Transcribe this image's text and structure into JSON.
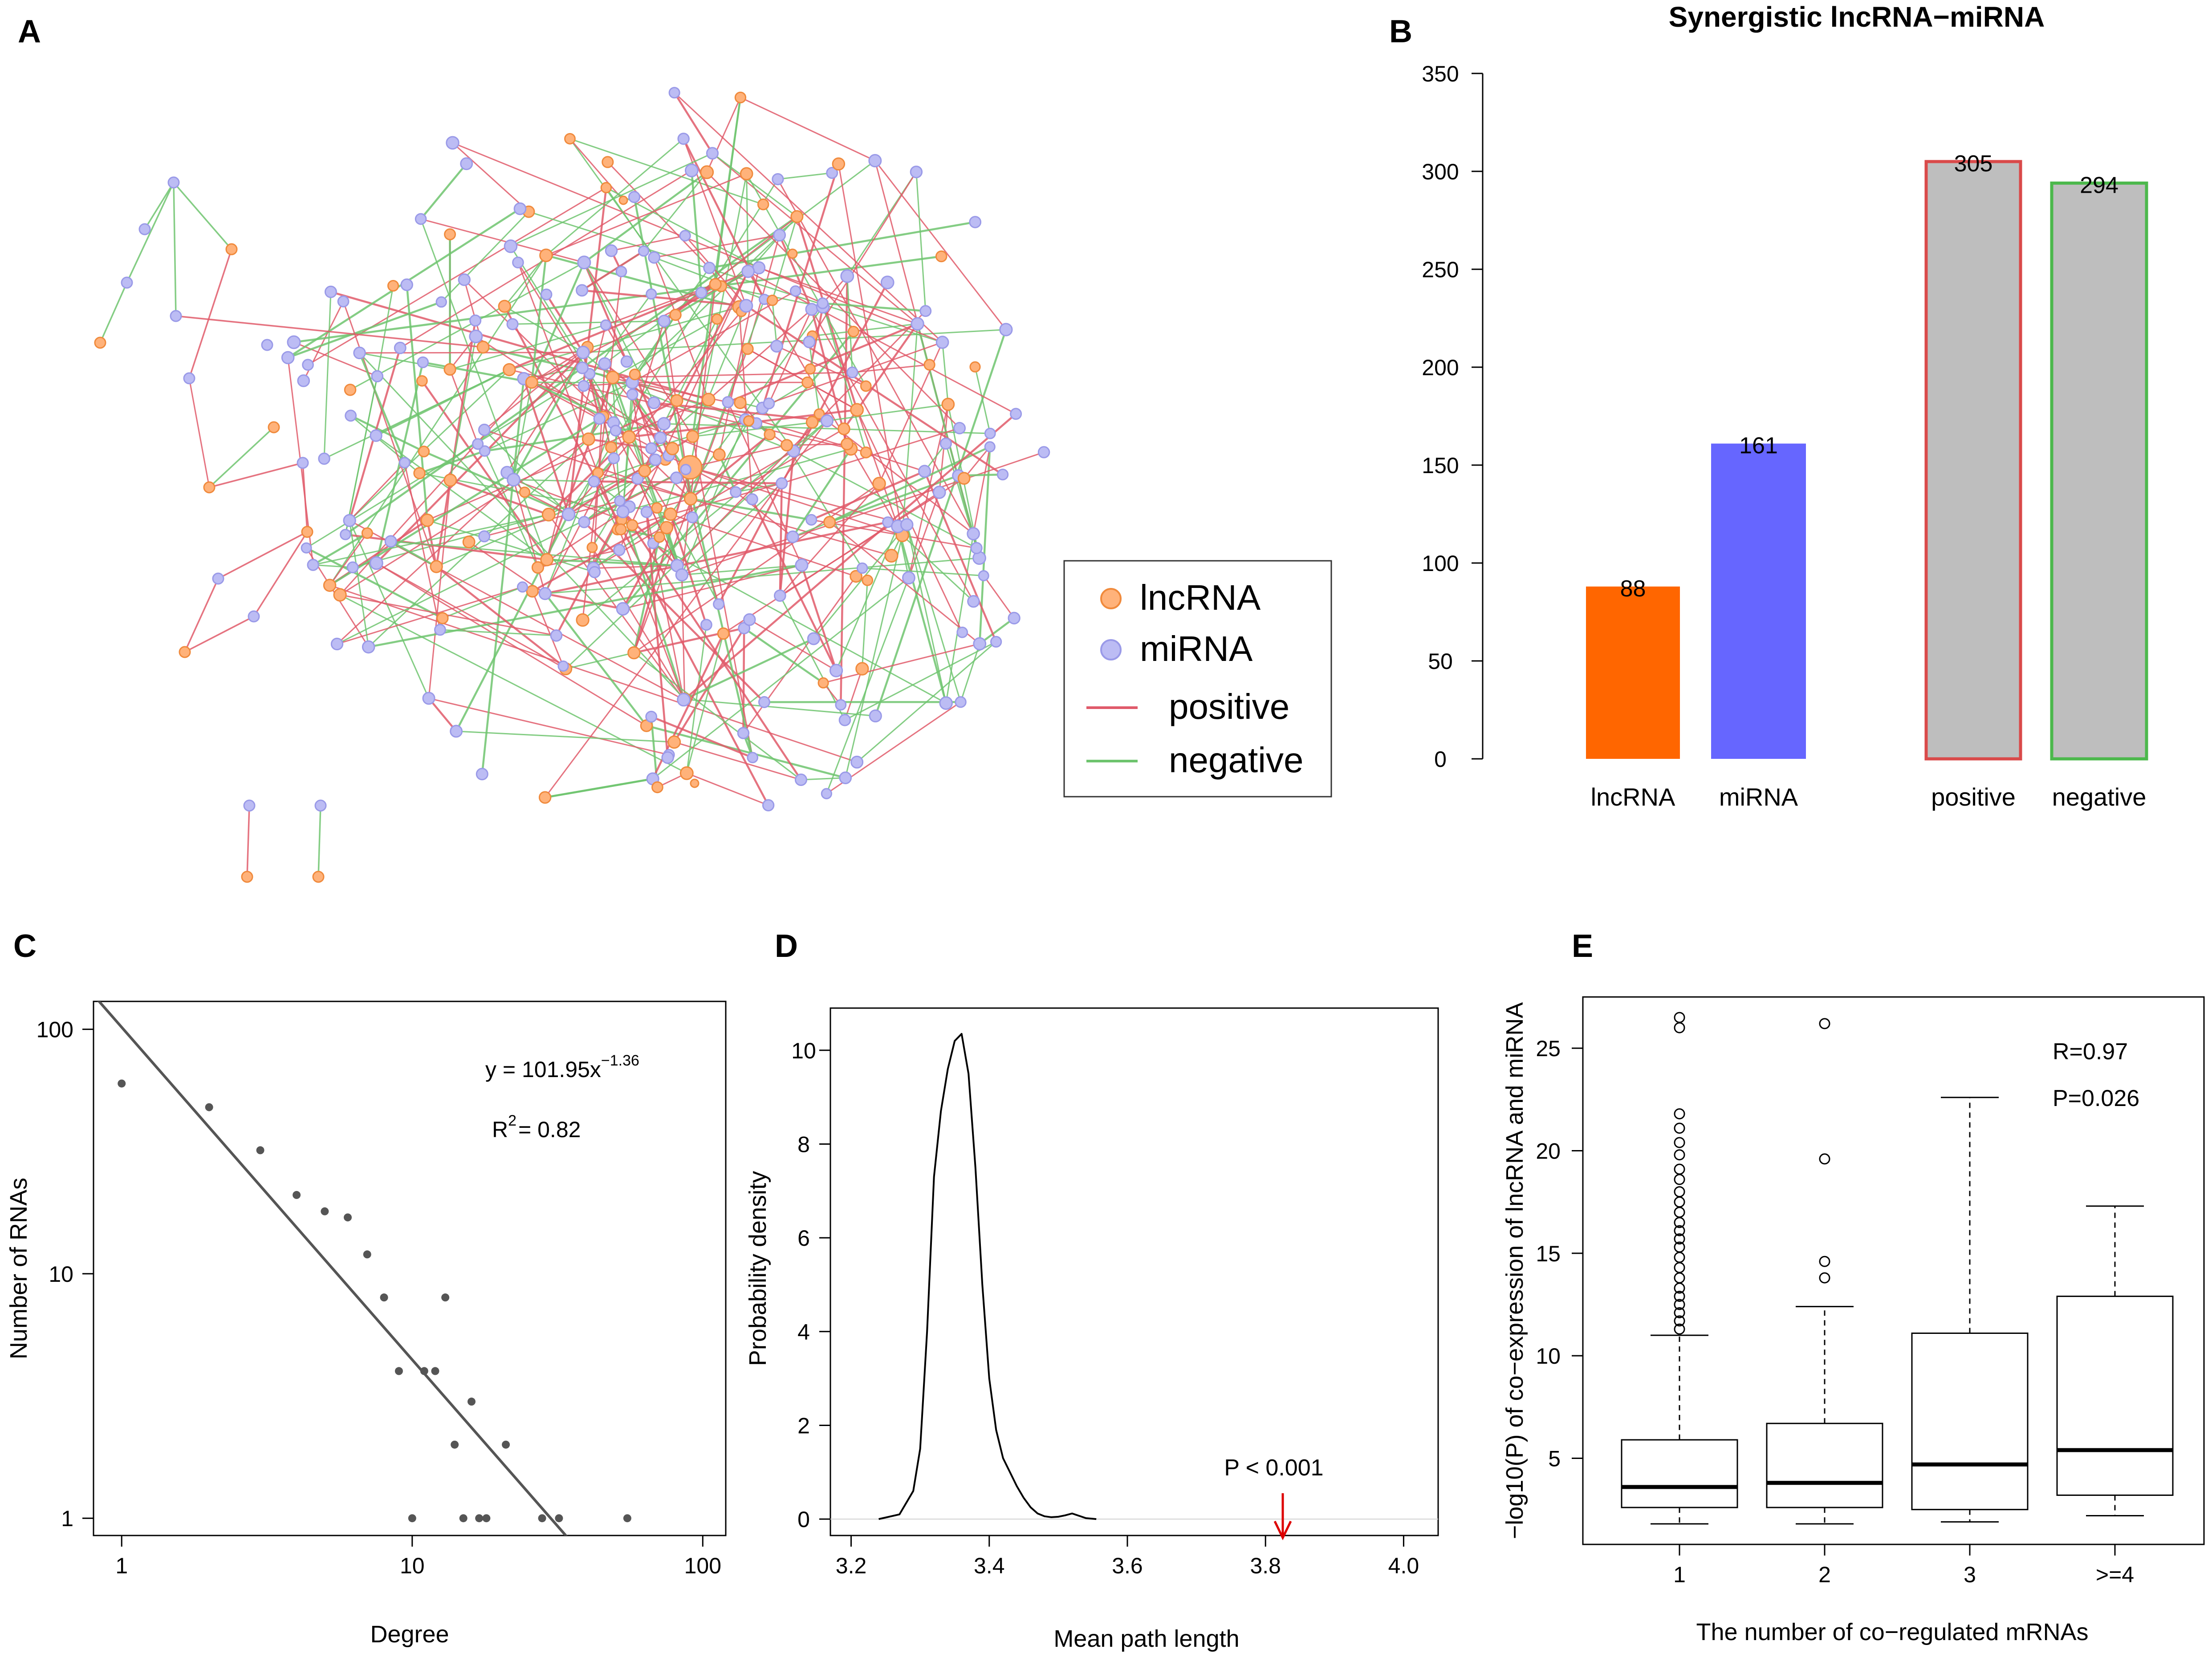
{
  "panel_labels": {
    "a": "A",
    "b": "B",
    "c": "C",
    "d": "D",
    "e": "E"
  },
  "colors": {
    "lncrna": "#ff6600",
    "mirna": "#6666ff",
    "positive": "#e05a6a",
    "negative": "#6ec46e",
    "pos_outline": "#d94a4a",
    "neg_outline": "#4cb84c",
    "gray_bar": "#bebebe",
    "ink": "#000000",
    "fit_line": "#555555"
  },
  "network": {
    "legend": {
      "lncrna": "lncRNA",
      "mirna": "miRNA",
      "positive": "positive",
      "negative": "negative"
    }
  },
  "chart_data": [
    {
      "id": "B",
      "type": "bar",
      "title": "Synergistic lncRNA−miRNA",
      "categories": [
        "lncRNA",
        "miRNA",
        "positive",
        "negative"
      ],
      "values": [
        88,
        161,
        305,
        294
      ],
      "value_labels": [
        "88",
        "161",
        "305",
        "294"
      ],
      "ylim": [
        0,
        350
      ],
      "yticks": [
        "0",
        "50",
        "100",
        "150",
        "200",
        "250",
        "300",
        "350"
      ]
    },
    {
      "id": "C",
      "type": "scatter",
      "xlabel": "Degree",
      "ylabel": "Number of RNAs",
      "xscale": "log",
      "yscale": "log",
      "xlim": [
        0.8,
        120
      ],
      "ylim": [
        0.85,
        130
      ],
      "xticks": [
        "1",
        "10",
        "100"
      ],
      "yticks": [
        "1",
        "10",
        "100"
      ],
      "points": [
        [
          1,
          60
        ],
        [
          2,
          48
        ],
        [
          3,
          32
        ],
        [
          4,
          21
        ],
        [
          5,
          18
        ],
        [
          6,
          17
        ],
        [
          7,
          12
        ],
        [
          8,
          8
        ],
        [
          9,
          4
        ],
        [
          11,
          4
        ],
        [
          12,
          4
        ],
        [
          13,
          8
        ],
        [
          14,
          2
        ],
        [
          16,
          3
        ],
        [
          10,
          1
        ],
        [
          15,
          1
        ],
        [
          17,
          1
        ],
        [
          18,
          1
        ],
        [
          21,
          2
        ],
        [
          28,
          1
        ],
        [
          32,
          1
        ],
        [
          55,
          1
        ]
      ],
      "fit": {
        "a": 101.95,
        "b": -1.36
      },
      "equation_prefix": "y = 101.95x",
      "equation_exp": "−1.36",
      "r2_prefix": "R",
      "r2_sup": "2",
      "r2_value": "= 0.82"
    },
    {
      "id": "D",
      "type": "line",
      "xlabel": "Mean path length",
      "ylabel": "Probability density",
      "xlim": [
        3.17,
        4.05
      ],
      "ylim": [
        -0.35,
        10.9
      ],
      "xticks": [
        "3.2",
        "3.4",
        "3.6",
        "3.8",
        "4.0"
      ],
      "yticks": [
        "0",
        "2",
        "4",
        "6",
        "8",
        "10"
      ],
      "x": [
        3.24,
        3.27,
        3.29,
        3.3,
        3.31,
        3.32,
        3.33,
        3.34,
        3.35,
        3.36,
        3.37,
        3.38,
        3.39,
        3.4,
        3.41,
        3.42,
        3.43,
        3.44,
        3.45,
        3.46,
        3.47,
        3.48,
        3.49,
        3.5,
        3.51,
        3.52,
        3.53,
        3.54,
        3.555
      ],
      "y": [
        0,
        0.1,
        0.6,
        1.5,
        4.0,
        7.3,
        8.7,
        9.6,
        10.2,
        10.35,
        9.5,
        7.5,
        5.0,
        3.0,
        1.9,
        1.3,
        1.0,
        0.7,
        0.45,
        0.25,
        0.12,
        0.06,
        0.04,
        0.05,
        0.08,
        0.12,
        0.07,
        0.02,
        0
      ],
      "annotation": "P < 0.001",
      "arrow_x": 3.825
    },
    {
      "id": "E",
      "type": "box",
      "xlabel": "The number of co−regulated mRNAs",
      "ylabel": "−log10(P) of co−expression of lncRNA and miRNA",
      "categories": [
        "1",
        "2",
        "3",
        ">=4"
      ],
      "ylim": [
        0.8,
        27.5
      ],
      "yticks": [
        "5",
        "10",
        "15",
        "20",
        "25"
      ],
      "boxes": [
        {
          "min": 1.8,
          "q1": 2.6,
          "median": 3.6,
          "q3": 5.9,
          "max": 11.0,
          "outliers": [
            11.3,
            11.7,
            12.1,
            12.5,
            12.9,
            13.3,
            13.8,
            14.3,
            14.8,
            15.3,
            15.7,
            16.1,
            16.5,
            17.0,
            17.5,
            18.0,
            18.6,
            19.1,
            19.8,
            20.4,
            21.1,
            21.8,
            26.0,
            26.5
          ]
        },
        {
          "min": 1.8,
          "q1": 2.6,
          "median": 3.8,
          "q3": 6.7,
          "max": 12.4,
          "outliers": [
            13.8,
            14.6,
            19.6,
            26.2
          ]
        },
        {
          "min": 1.9,
          "q1": 2.5,
          "median": 4.7,
          "q3": 11.1,
          "max": 22.6,
          "outliers": []
        },
        {
          "min": 2.2,
          "q1": 3.2,
          "median": 5.4,
          "q3": 12.9,
          "max": 17.3,
          "outliers": []
        }
      ],
      "r_label": "R=0.97",
      "p_label": "P=0.026"
    }
  ]
}
